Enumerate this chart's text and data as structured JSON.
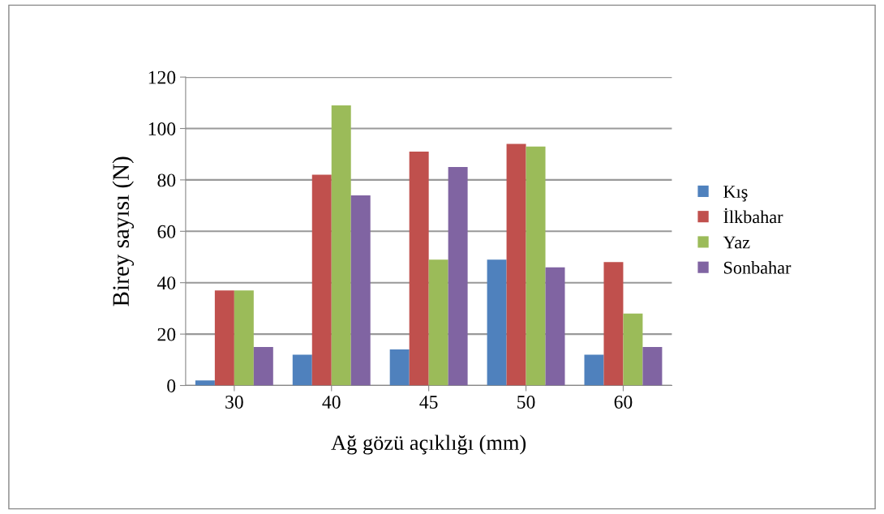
{
  "chart_data": {
    "type": "bar",
    "xlabel": "Ağ gözü açıklığı (mm)",
    "ylabel": "Birey sayısı (N)",
    "categories": [
      "30",
      "40",
      "45",
      "50",
      "60"
    ],
    "series": [
      {
        "name": "Kış",
        "color": "#4f81bd",
        "values": [
          2,
          12,
          14,
          49,
          12
        ]
      },
      {
        "name": "İlkbahar",
        "color": "#c0504d",
        "values": [
          37,
          82,
          91,
          94,
          48
        ]
      },
      {
        "name": "Yaz",
        "color": "#9bbb59",
        "values": [
          37,
          109,
          49,
          93,
          28
        ]
      },
      {
        "name": "Sonbahar",
        "color": "#8064a2",
        "values": [
          15,
          74,
          85,
          46,
          15
        ]
      }
    ],
    "ylim": [
      0,
      120
    ],
    "yticks": [
      0,
      20,
      40,
      60,
      80,
      100,
      120
    ],
    "grid": "y",
    "legend": "right"
  }
}
